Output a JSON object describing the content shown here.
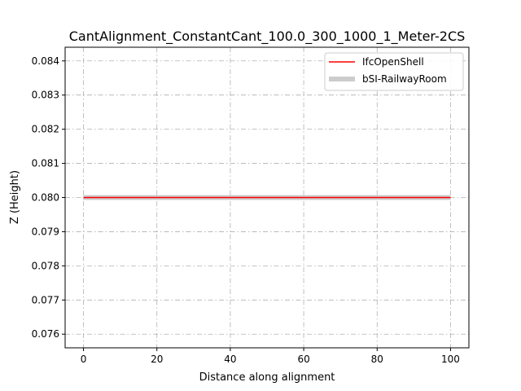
{
  "chart_data": {
    "type": "line",
    "title": "CantAlignment_ConstantCant_100.0_300_1000_1_Meter-2CS",
    "xlabel": "Distance along alignment",
    "ylabel": "Z (Height)",
    "xlim": [
      -5,
      105
    ],
    "ylim": [
      0.0756,
      0.0844
    ],
    "x_ticks": [
      0,
      20,
      40,
      60,
      80,
      100
    ],
    "x_tick_labels": [
      "0",
      "20",
      "40",
      "60",
      "80",
      "100"
    ],
    "y_ticks": [
      0.076,
      0.077,
      0.078,
      0.079,
      0.08,
      0.081,
      0.082,
      0.083,
      0.084
    ],
    "y_tick_labels": [
      "0.076",
      "0.077",
      "0.078",
      "0.079",
      "0.080",
      "0.081",
      "0.082",
      "0.083",
      "0.084"
    ],
    "grid": true,
    "legend_position": "top-right",
    "series": [
      {
        "name": "IfcOpenShell",
        "color": "#ff0000",
        "line_style": "thin solid",
        "x": [
          0,
          100
        ],
        "y": [
          0.08,
          0.08
        ]
      },
      {
        "name": "bSI-RailwayRoom",
        "color": "#cccccc",
        "line_style": "thick solid",
        "x": [
          0,
          100
        ],
        "y": [
          0.08,
          0.08
        ]
      }
    ]
  }
}
